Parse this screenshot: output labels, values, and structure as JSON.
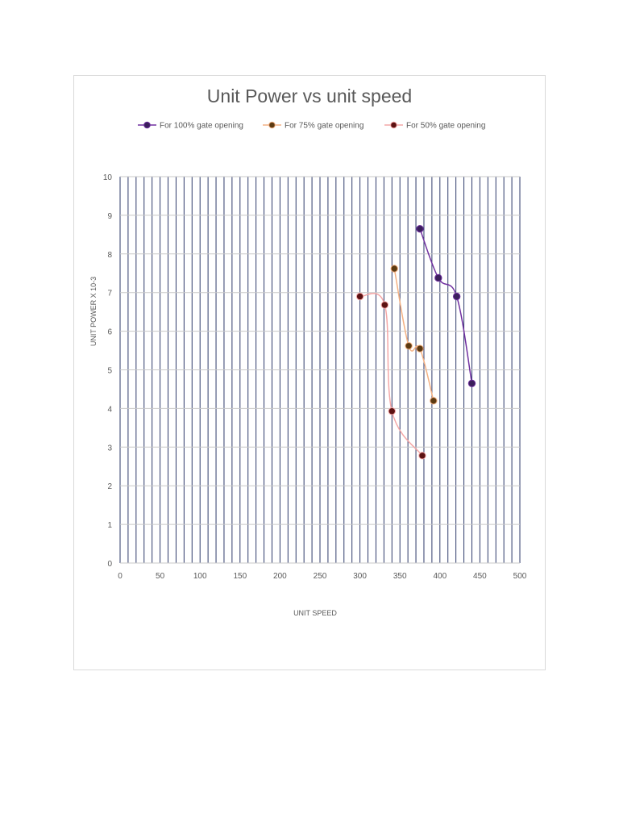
{
  "chart_data": {
    "type": "scatter",
    "title": "Unit Power vs unit speed",
    "xlabel": "UNIT SPEED",
    "ylabel": "UNIT POWER X 10-3",
    "xlim": [
      0,
      500
    ],
    "ylim": [
      0,
      10
    ],
    "x_ticks": [
      "0",
      "50",
      "100",
      "150",
      "200",
      "250",
      "300",
      "350",
      "400",
      "450",
      "500"
    ],
    "y_ticks": [
      "0",
      "1",
      "2",
      "3",
      "4",
      "5",
      "6",
      "7",
      "8",
      "9",
      "10"
    ],
    "x_minor_step": 10,
    "grid": true,
    "legend_position": "top",
    "series": [
      {
        "name": "For 100% gate opening",
        "color": "#7030a0",
        "marker_color": "#3b1f5c",
        "points": [
          [
            375,
            8.65
          ],
          [
            398,
            7.38
          ],
          [
            421,
            6.9
          ],
          [
            440,
            4.65
          ]
        ]
      },
      {
        "name": "For 75% gate opening",
        "color": "#f4b183",
        "marker_color": "#5c3a12",
        "points": [
          [
            343,
            7.62
          ],
          [
            361,
            5.62
          ],
          [
            375,
            5.55
          ],
          [
            392,
            4.2
          ]
        ]
      },
      {
        "name": "For 50% gate opening",
        "color": "#f4a7a7",
        "marker_color": "#5c1212",
        "points": [
          [
            300,
            6.9
          ],
          [
            331,
            6.68
          ],
          [
            340,
            3.93
          ],
          [
            378,
            2.78
          ]
        ]
      }
    ]
  }
}
